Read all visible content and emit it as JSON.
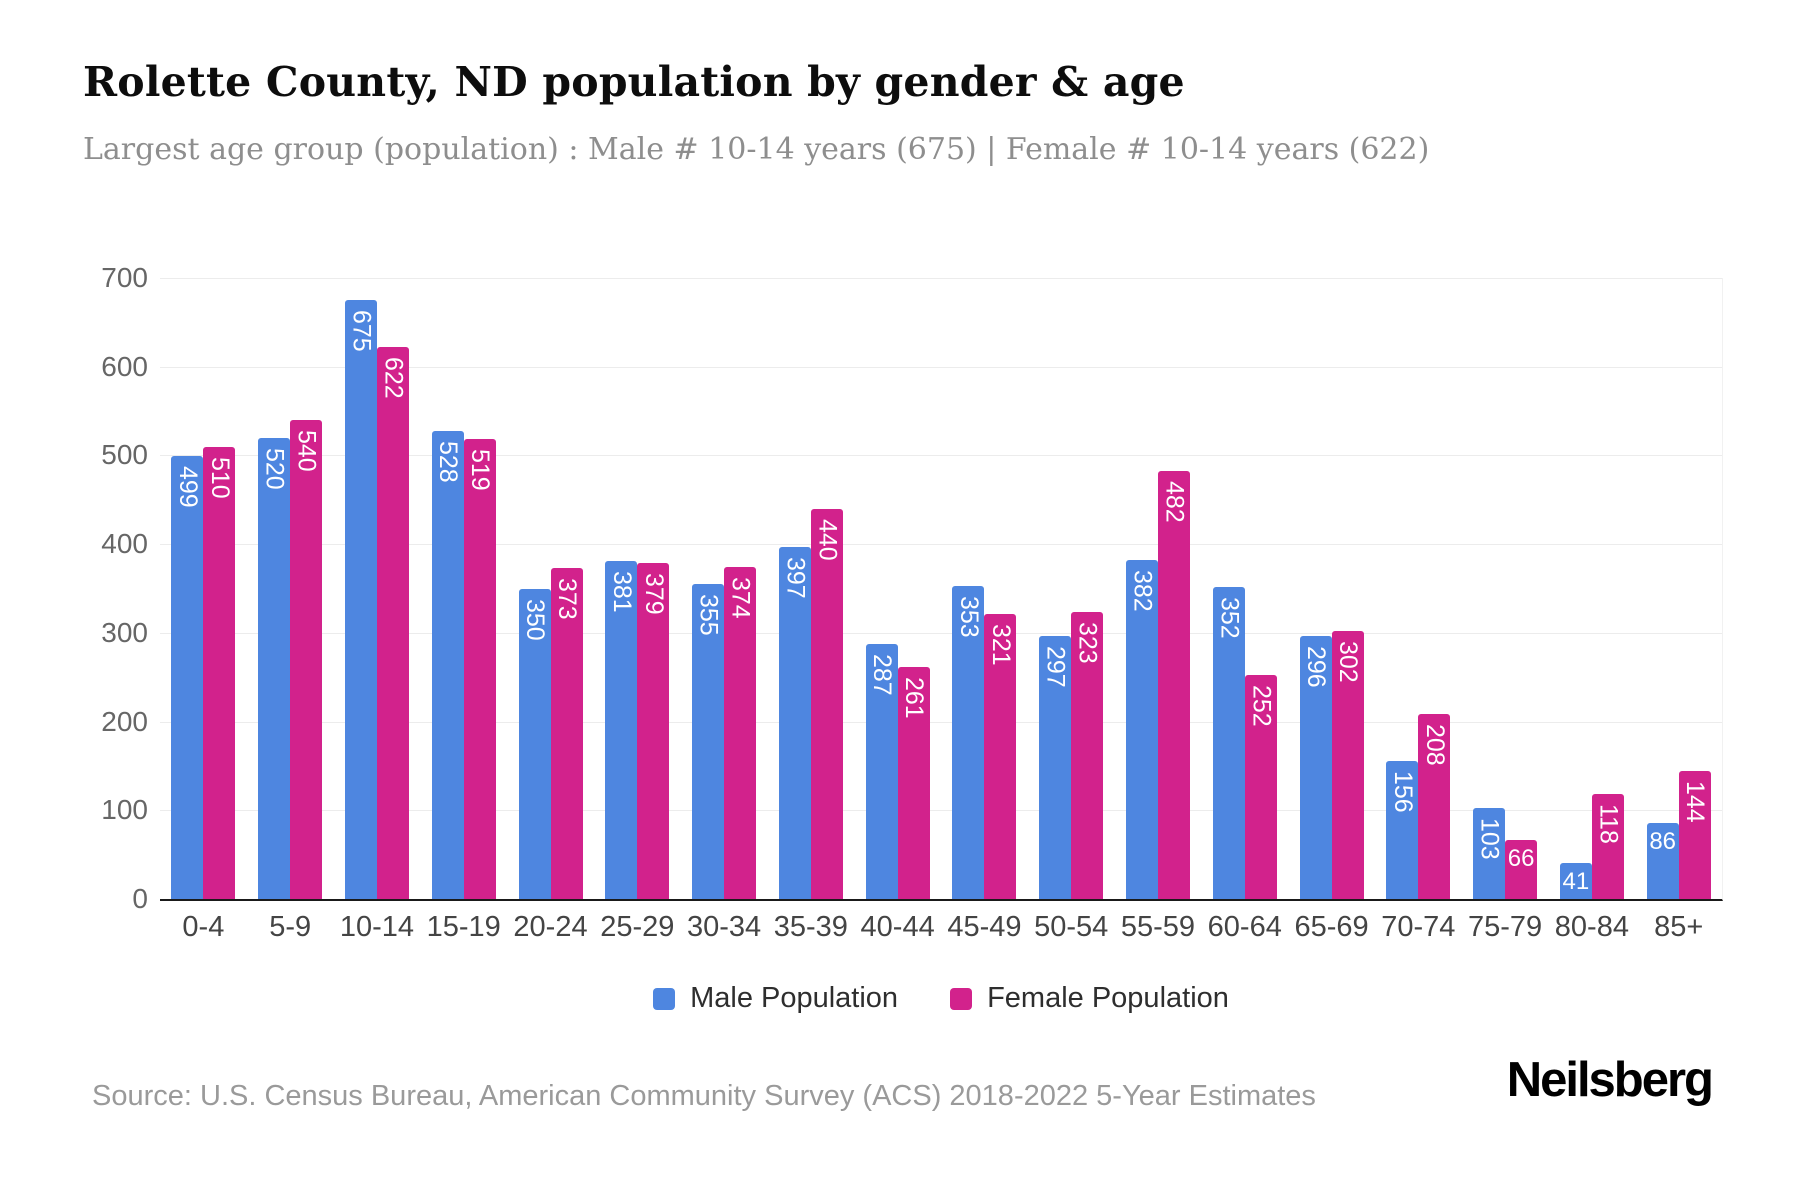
{
  "header": {
    "title": "Rolette County, ND population by gender & age",
    "subtitle": "Largest age group (population) : Male # 10-14 years (675) | Female # 10-14 years (622)"
  },
  "chart_data": {
    "type": "bar",
    "categories": [
      "0-4",
      "5-9",
      "10-14",
      "15-19",
      "20-24",
      "25-29",
      "30-34",
      "35-39",
      "40-44",
      "45-49",
      "50-54",
      "55-59",
      "60-64",
      "65-69",
      "70-74",
      "75-79",
      "80-84",
      "85+"
    ],
    "series": [
      {
        "name": "Male Population",
        "color": "#4e86e0",
        "values": [
          499,
          520,
          675,
          528,
          350,
          381,
          355,
          397,
          287,
          353,
          297,
          382,
          352,
          296,
          156,
          103,
          41,
          86
        ]
      },
      {
        "name": "Female Population",
        "color": "#d2228c",
        "values": [
          510,
          540,
          622,
          519,
          373,
          379,
          374,
          440,
          261,
          321,
          323,
          482,
          252,
          302,
          208,
          66,
          118,
          144
        ]
      }
    ],
    "title": "Rolette County, ND population by gender & age",
    "xlabel": "",
    "ylabel": "",
    "ylim": [
      0,
      700
    ],
    "yticks": [
      0,
      100,
      200,
      300,
      400,
      500,
      600,
      700
    ],
    "grid": true,
    "legend_position": "bottom"
  },
  "footer": {
    "source": "Source: U.S. Census Bureau, American Community Survey (ACS) 2018-2022 5-Year Estimates",
    "brand": "Neilsberg"
  }
}
